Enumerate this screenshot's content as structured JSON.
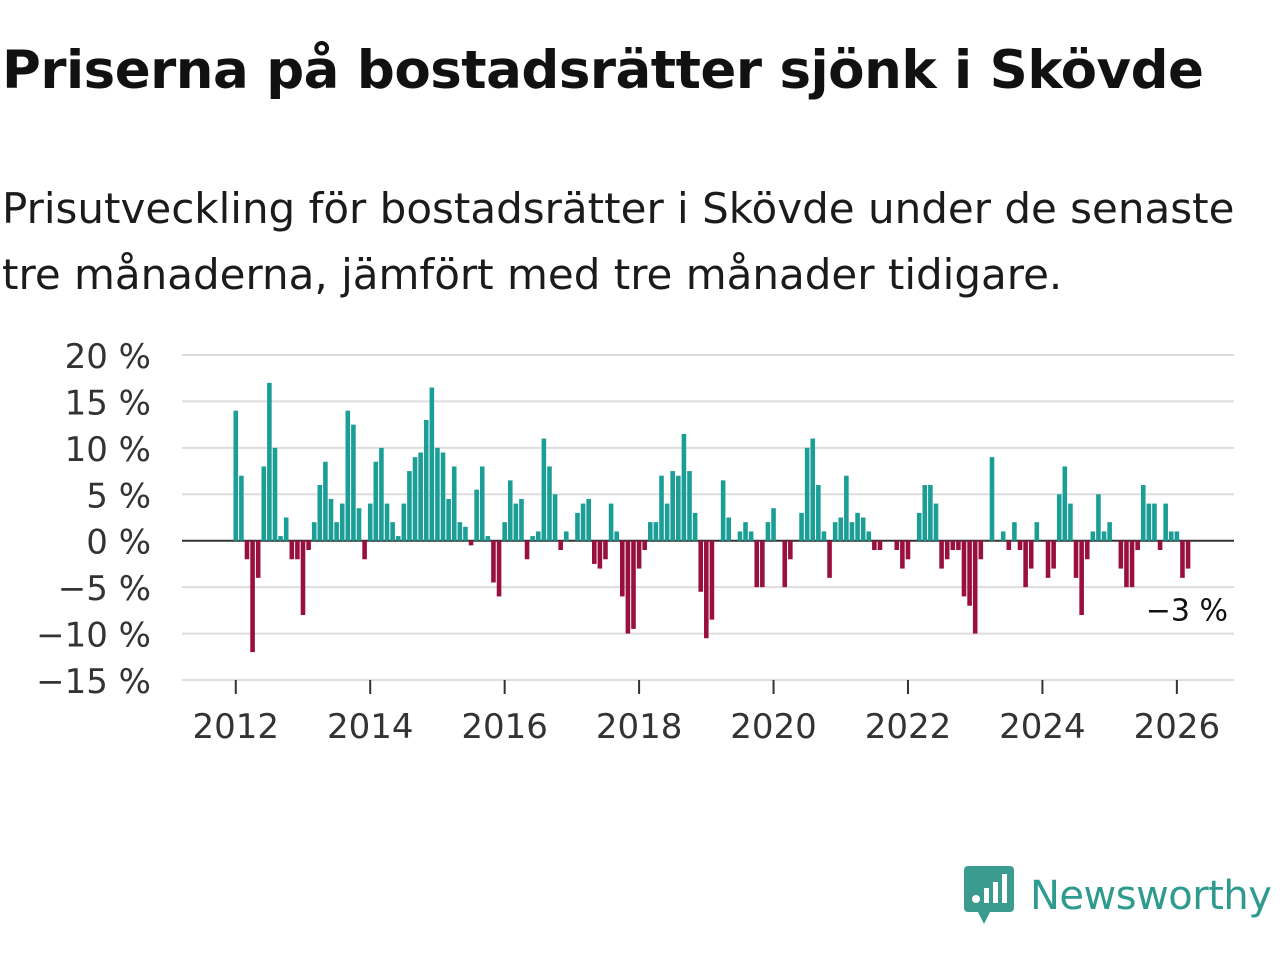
{
  "header": {
    "title": "Priserna på bostadsrätter sjönk i Skövde",
    "subtitle": "Prisutveckling för bostadsrätter i Skövde under de senaste tre månaderna, jämfört med tre månader tidigare."
  },
  "brand": {
    "name": "Newsworthy",
    "icon": "newsworthy-logo-icon",
    "color": "#3a9b8e"
  },
  "colors": {
    "positive": "#1a9e96",
    "negative": "#99103f",
    "grid": "#dddddd",
    "zero_line": "#333333"
  },
  "chart_data": {
    "type": "bar",
    "title": "Priserna på bostadsrätter sjönk i Skövde",
    "xlabel": "",
    "ylabel": "",
    "ylim": [
      -15,
      20
    ],
    "xlim": [
      2011.2,
      2026.85
    ],
    "yticks": [
      20,
      15,
      10,
      5,
      0,
      -5,
      -10,
      -15
    ],
    "ytick_labels": [
      "20 %",
      "15 %",
      "10 %",
      "5 %",
      "0 %",
      "−5 %",
      "−10 %",
      "−15 %"
    ],
    "xticks": [
      2012,
      2014,
      2016,
      2018,
      2020,
      2022,
      2024,
      2026
    ],
    "xtick_labels": [
      "2012",
      "2014",
      "2016",
      "2018",
      "2020",
      "2022",
      "2024",
      "2026"
    ],
    "x_start": 2012,
    "interval": "month",
    "values": [
      14,
      7,
      -2,
      -12,
      -4,
      8,
      17,
      10,
      0.5,
      2.5,
      -2,
      -2,
      -8,
      -1,
      2,
      6,
      8.5,
      4.5,
      2,
      4,
      14,
      12.5,
      3.5,
      -2,
      4,
      8.5,
      10,
      4,
      2,
      0.5,
      4,
      7.5,
      9,
      9.5,
      13,
      16.5,
      10,
      9.5,
      4.5,
      8,
      2,
      1.5,
      -0.5,
      5.5,
      8,
      0.5,
      -4.5,
      -6,
      2,
      6.5,
      4,
      4.5,
      -2,
      0.5,
      1,
      11,
      8,
      5,
      -1,
      1,
      0,
      3,
      4,
      4.5,
      -2.5,
      -3,
      -2,
      4,
      1,
      -6,
      -10,
      -9.5,
      -3,
      -1,
      2,
      2,
      7,
      4,
      7.5,
      7,
      11.5,
      7.5,
      3,
      -5.5,
      -10.5,
      -8.5,
      0,
      6.5,
      2.5,
      0,
      1,
      2,
      1,
      -5,
      -5,
      2,
      3.5,
      0,
      -5,
      -2,
      0,
      3,
      10,
      11,
      6,
      1,
      -4,
      2,
      2.5,
      7,
      2,
      3,
      2.5,
      1,
      -1,
      -1,
      0,
      0,
      -1,
      -3,
      -2,
      0,
      3,
      6,
      6,
      4,
      -3,
      -2,
      -1,
      -1,
      -6,
      -7,
      -10,
      -2,
      0,
      9,
      0,
      1,
      -1,
      2,
      -1,
      -5,
      -3,
      2,
      0,
      -4,
      -3,
      5,
      8,
      4,
      -4,
      -8,
      -2,
      1,
      5,
      1,
      2,
      0,
      -3,
      -5,
      -5,
      -1,
      6,
      4,
      4,
      -1,
      4,
      1,
      1,
      -4,
      -3
    ],
    "last_label": "−3 %"
  }
}
